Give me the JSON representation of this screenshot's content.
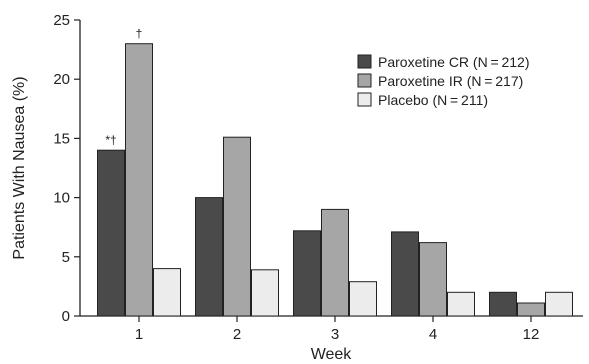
{
  "chart_data": {
    "type": "bar",
    "title": "",
    "xlabel": "Week",
    "ylabel": "Patients With Nausea (%)",
    "ylim": [
      0,
      25
    ],
    "yticks": [
      "0",
      "5",
      "10",
      "15",
      "20",
      "25"
    ],
    "categories": [
      "1",
      "2",
      "3",
      "4",
      "12"
    ],
    "series": [
      {
        "name": "Paroxetine CR (N = 212)",
        "color": "#4a4a4a",
        "values": [
          14,
          10,
          7.2,
          7.1,
          2
        ]
      },
      {
        "name": "Paroxetine IR (N = 217)",
        "color": "#a6a6a6",
        "values": [
          23,
          15.1,
          9,
          6.2,
          1.1
        ]
      },
      {
        "name": "Placebo (N = 211)",
        "color": "#ececec",
        "values": [
          4,
          3.9,
          2.9,
          2,
          2
        ]
      }
    ],
    "annotations": [
      {
        "category": "1",
        "series": 0,
        "text": "*†"
      },
      {
        "category": "1",
        "series": 1,
        "text": "†"
      }
    ],
    "legend": "top-right",
    "grid": false
  }
}
